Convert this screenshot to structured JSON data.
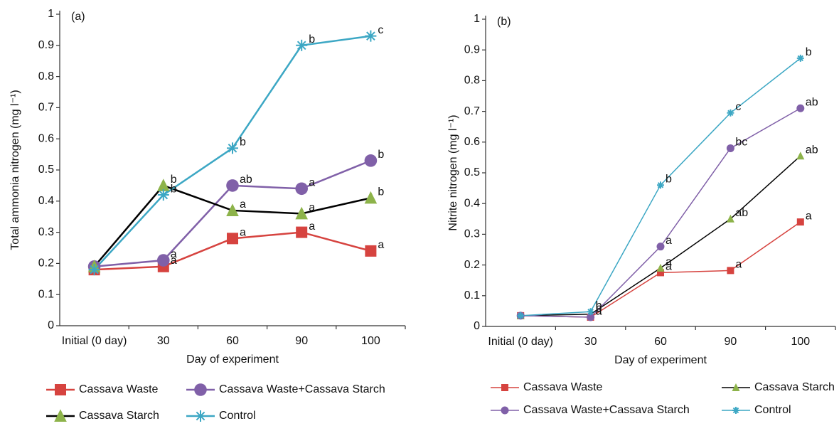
{
  "chart_data": [
    {
      "type": "line",
      "panel_label": "(a)",
      "x_label": "Day of experiment",
      "y_label": "Total ammonia nitrogen (mg l⁻¹)",
      "categories": [
        "Initial (0 day)",
        "30",
        "60",
        "90",
        "100"
      ],
      "ylim": [
        0,
        1
      ],
      "yticks": [
        0,
        0.1,
        0.2,
        0.3,
        0.4,
        0.5,
        0.6,
        0.7,
        0.8,
        0.9,
        1
      ],
      "series": [
        {
          "name": "Cassava Waste",
          "color": "#d6433f",
          "marker": "square",
          "marker_color": "#d6433f",
          "values": [
            0.18,
            0.19,
            0.28,
            0.3,
            0.24
          ],
          "letters": [
            null,
            "a",
            "a",
            "a",
            "a"
          ]
        },
        {
          "name": "Cassava Waste+Cassava Starch",
          "color": "#8060a8",
          "marker": "circle",
          "marker_color": "#8060a8",
          "values": [
            0.19,
            0.21,
            0.45,
            0.44,
            0.53
          ],
          "letters": [
            null,
            "a",
            "ab",
            "a",
            "b"
          ]
        },
        {
          "name": "Cassava Starch",
          "color": "#000000",
          "marker": "triangle",
          "marker_color": "#8db34a",
          "values": [
            0.19,
            0.45,
            0.37,
            0.36,
            0.41
          ],
          "letters": [
            null,
            "b",
            "a",
            "a",
            "b"
          ]
        },
        {
          "name": "Control",
          "color": "#3ca7c4",
          "marker": "star",
          "marker_color": "#3ca7c4",
          "values": [
            0.18,
            0.42,
            0.57,
            0.9,
            0.93
          ],
          "letters": [
            null,
            "b",
            "b",
            "b",
            "c"
          ]
        }
      ]
    },
    {
      "type": "line",
      "panel_label": "(b)",
      "x_label": "Day of experiment",
      "y_label": "Nitrite nitrogen (mg l⁻¹)",
      "categories": [
        "Initial (0 day)",
        "30",
        "60",
        "90",
        "100"
      ],
      "ylim": [
        0,
        1
      ],
      "yticks": [
        0,
        0.1,
        0.2,
        0.3,
        0.4,
        0.5,
        0.6,
        0.7,
        0.8,
        0.9,
        1
      ],
      "series": [
        {
          "name": "Cassava Waste",
          "color": "#d6433f",
          "marker": "square",
          "marker_color": "#d6433f",
          "values": [
            0.035,
            0.03,
            0.175,
            0.182,
            0.34
          ],
          "letters": [
            null,
            "a",
            "a",
            "a",
            "a"
          ]
        },
        {
          "name": "Cassava Starch",
          "color": "#000000",
          "marker": "triangle",
          "marker_color": "#8db34a",
          "values": [
            0.035,
            0.04,
            0.19,
            0.35,
            0.555
          ],
          "letters": [
            null,
            "b",
            "a",
            "ab",
            "ab"
          ]
        },
        {
          "name": "Cassava Waste+Cassava Starch",
          "color": "#8060a8",
          "marker": "circle",
          "marker_color": "#8060a8",
          "values": [
            0.035,
            0.03,
            0.26,
            0.58,
            0.71
          ],
          "letters": [
            null,
            "a",
            "a",
            "bc",
            "ab"
          ]
        },
        {
          "name": "Control",
          "color": "#3ca7c4",
          "marker": "star",
          "marker_color": "#3ca7c4",
          "values": [
            0.035,
            0.048,
            0.46,
            0.695,
            0.873
          ],
          "letters": [
            null,
            "b",
            "b",
            "c",
            "b"
          ]
        }
      ]
    }
  ]
}
